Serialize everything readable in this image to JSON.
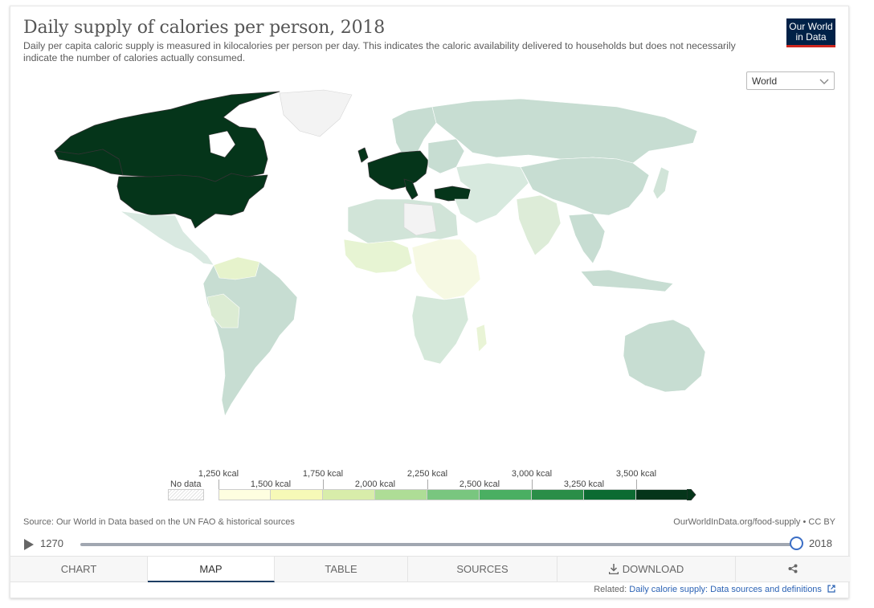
{
  "header": {
    "title": "Daily supply of calories per person, 2018",
    "subtitle": "Daily per capita caloric supply is measured in kilocalories per person per day. This indicates the caloric availability delivered to households but does not necessarily indicate the number of calories actually consumed.",
    "logo_line1": "Our World",
    "logo_line2": "in Data"
  },
  "controls": {
    "region_value": "World"
  },
  "legend": {
    "no_data_label": "No data",
    "ticks_top": [
      "1,250 kcal",
      "1,750 kcal",
      "2,250 kcal",
      "3,000 kcal",
      "3,500 kcal"
    ],
    "ticks_bottom": [
      "1,500 kcal",
      "2,000 kcal",
      "2,500 kcal",
      "3,250 kcal"
    ],
    "colors": [
      "#fefee0",
      "#f6f9b7",
      "#d8edaa",
      "#aedd96",
      "#79c67f",
      "#4aaf62",
      "#2a8e48",
      "#0c6b32",
      "#05351a"
    ]
  },
  "footer": {
    "source": "Source: Our World in Data based on the UN FAO & historical sources",
    "url": "OurWorldInData.org/food-supply • CC BY"
  },
  "timeline": {
    "start_year": "1270",
    "end_year": "2018",
    "position_fraction": 1.0
  },
  "tabs": {
    "chart": "CHART",
    "map": "MAP",
    "table": "TABLE",
    "sources": "SOURCES",
    "download": "DOWNLOAD"
  },
  "related": {
    "prefix": "Related:",
    "link": "Daily calorie supply: Data sources and definitions"
  },
  "icons": {
    "play": "play-icon",
    "download": "download-icon",
    "share": "share-icon",
    "external": "external-link-icon",
    "chevron": "chevron-down-icon"
  }
}
